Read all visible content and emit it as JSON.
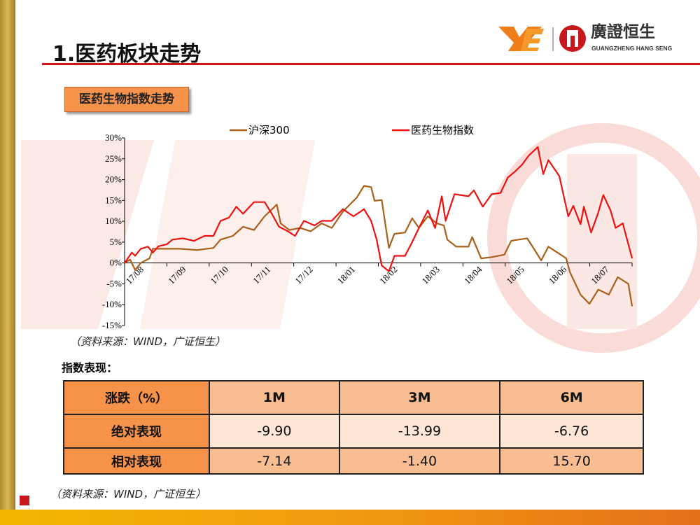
{
  "header": {
    "title": "1.医药板块走势",
    "logo_cn": "廣證恒生",
    "logo_en": "GUANGZHENG HANG SENG"
  },
  "subtitle": "医药生物指数走势",
  "colors": {
    "hs300": "#a8601a",
    "med": "#ee1111",
    "accent": "#d0161d",
    "header_cell": "#f6924a"
  },
  "chart_data": {
    "type": "line",
    "title": "",
    "xlabel": "",
    "ylabel": "",
    "x_ticks": [
      "17/08",
      "17/09",
      "17/10",
      "17/11",
      "17/12",
      "18/01",
      "18/02",
      "18/03",
      "18/04",
      "18/05",
      "18/06",
      "18/07"
    ],
    "y_ticks": [
      "30%",
      "25%",
      "20%",
      "15%",
      "10%",
      "5%",
      "0%",
      "-5%",
      "-10%",
      "-15%"
    ],
    "ylim": [
      -15,
      30
    ],
    "xlim": [
      0,
      12
    ],
    "legend_position": "top",
    "series": [
      {
        "name": "沪深300",
        "x": [
          0,
          0.13,
          0.25,
          0.38,
          0.59,
          0.67,
          1.0,
          1.3,
          1.72,
          2.1,
          2.27,
          2.56,
          2.8,
          3.06,
          3.31,
          3.6,
          3.69,
          3.9,
          4.15,
          4.4,
          4.66,
          4.9,
          5.16,
          5.49,
          5.66,
          5.83,
          5.91,
          6.08,
          6.25,
          6.38,
          6.63,
          6.8,
          6.96,
          7.17,
          7.38,
          7.55,
          7.63,
          7.84,
          8.13,
          8.22,
          8.43,
          8.68,
          8.98,
          9.14,
          9.31,
          9.52,
          9.68,
          9.85,
          10.02,
          10.28,
          10.44,
          10.53,
          10.78,
          10.99,
          11.2,
          11.45,
          11.66,
          11.91,
          12
        ],
        "y": [
          0,
          0.8,
          -1.7,
          0,
          1.1,
          3.4,
          3.4,
          3.4,
          3.1,
          3.6,
          5.6,
          6.5,
          8.7,
          7.9,
          11.2,
          14,
          9.5,
          7.9,
          8.4,
          7.6,
          9.5,
          8.4,
          12.3,
          15.7,
          18.5,
          18.2,
          14.9,
          15.1,
          3.6,
          7.0,
          7.3,
          10.7,
          8.4,
          11.2,
          9.5,
          9.0,
          5.6,
          3.9,
          3.9,
          6.2,
          1.1,
          1.4,
          2.0,
          5.3,
          5.6,
          5.9,
          3.4,
          0.6,
          3.9,
          2.2,
          1.1,
          -2.2,
          -7.6,
          -9.8,
          -6.4,
          -7.6,
          -3.4,
          -5.0,
          -10.4
        ]
      },
      {
        "name": "医药生物指数",
        "x": [
          0,
          0.17,
          0.25,
          0.38,
          0.55,
          0.67,
          0.8,
          1.0,
          1.13,
          1.38,
          1.64,
          1.89,
          2.1,
          2.27,
          2.47,
          2.64,
          2.8,
          3.06,
          3.31,
          3.48,
          3.65,
          3.86,
          4.03,
          4.24,
          4.49,
          4.66,
          4.9,
          5.16,
          5.41,
          5.66,
          5.83,
          5.96,
          6.08,
          6.25,
          6.38,
          6.63,
          6.8,
          6.96,
          7.17,
          7.34,
          7.5,
          7.59,
          7.8,
          8.13,
          8.26,
          8.47,
          8.68,
          8.89,
          9.06,
          9.23,
          9.4,
          9.56,
          9.77,
          9.9,
          10.02,
          10.28,
          10.49,
          10.61,
          10.78,
          10.86,
          11.03,
          11.2,
          11.32,
          11.49,
          11.61,
          11.78,
          12
        ],
        "y": [
          0,
          2.5,
          1.7,
          3.4,
          3.9,
          2.5,
          4,
          4.5,
          5.6,
          5.9,
          5.3,
          6.5,
          6.5,
          10.1,
          10.9,
          13.5,
          11.8,
          14.6,
          14.6,
          11.8,
          8.7,
          7.6,
          6.5,
          10.1,
          9.0,
          10.1,
          10.1,
          12.9,
          11.2,
          12.9,
          10.1,
          5.6,
          -0.6,
          -2.0,
          1.7,
          1.7,
          5.0,
          8.4,
          12.6,
          8.4,
          16,
          10.1,
          16.5,
          16,
          17.4,
          13.5,
          16.5,
          16.8,
          20.5,
          21.9,
          23.6,
          25.8,
          27.8,
          21.3,
          24.7,
          20.8,
          11.2,
          13.7,
          9.3,
          13.5,
          7.3,
          12.1,
          16.3,
          12.6,
          8.4,
          9.5,
          1.1
        ]
      }
    ]
  },
  "chart_source": "（资料来源：WIND，广证恒生）",
  "perf_label": "指数表现：",
  "table": {
    "headers": [
      "涨跌（%）",
      "1M",
      "3M",
      "6M"
    ],
    "rows": [
      {
        "label": "绝对表现",
        "values": [
          "-9.90",
          "-13.99",
          "-6.76"
        ]
      },
      {
        "label": "相对表现",
        "values": [
          "-7.14",
          "-1.40",
          "15.70"
        ]
      }
    ]
  },
  "table_source": "（资料来源：WIND，广证恒生）"
}
